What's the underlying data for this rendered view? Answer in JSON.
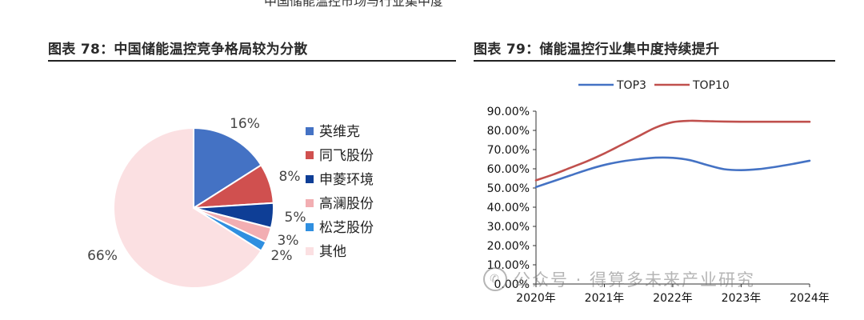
{
  "header_fragment": "中国储能温控市场与行业集中度",
  "left_panel": {
    "title": "图表 78：中国储能温控竞争格局较为分散"
  },
  "right_panel": {
    "title": "图表 79：储能温控行业集中度持续提升"
  },
  "watermark": {
    "icon": "wechat-icon",
    "text": "公众号 · 得算多未来产业研究"
  },
  "chart_data": [
    {
      "type": "pie",
      "title": "",
      "slices": [
        {
          "name": "英维克",
          "value": 16,
          "label": "16%",
          "color": "#4472C4"
        },
        {
          "name": "同飞股份",
          "value": 8,
          "label": "8%",
          "color": "#D0504F"
        },
        {
          "name": "申菱环境",
          "value": 5,
          "label": "5%",
          "color": "#0E3E96"
        },
        {
          "name": "高澜股份",
          "value": 3,
          "label": "3%",
          "color": "#F2AEB2"
        },
        {
          "name": "松芝股份",
          "value": 2,
          "label": "2%",
          "color": "#2F8FE0"
        },
        {
          "name": "其他",
          "value": 66,
          "label": "66%",
          "color": "#FBE0E2"
        }
      ],
      "legend_position": "right"
    },
    {
      "type": "line",
      "title": "",
      "xlabel": "",
      "ylabel": "",
      "categories": [
        "2020年",
        "2021年",
        "2022年",
        "2023年",
        "2024年"
      ],
      "x": [
        2020,
        2020.25,
        2020.5,
        2020.75,
        2021,
        2021.25,
        2021.5,
        2021.75,
        2022,
        2022.25,
        2022.5,
        2022.75,
        2023,
        2023.25,
        2023.5,
        2023.75,
        2024
      ],
      "series": [
        {
          "name": "TOP3",
          "color": "#4472C4",
          "values": [
            50.5,
            53.5,
            56.5,
            59.5,
            62,
            63.8,
            65,
            65.8,
            65.7,
            64.5,
            62,
            59.8,
            59.3,
            59.8,
            61,
            62.5,
            64.2
          ]
        },
        {
          "name": "TOP10",
          "color": "#C0504D",
          "values": [
            54,
            57,
            60.5,
            64,
            68,
            72.5,
            77,
            81.5,
            84.3,
            85,
            84.8,
            84.6,
            84.5,
            84.5,
            84.5,
            84.5,
            84.5
          ]
        }
      ],
      "y_tick_labels": [
        "0.00%",
        "10.00%",
        "20.00%",
        "30.00%",
        "40.00%",
        "50.00%",
        "60.00%",
        "70.00%",
        "80.00%",
        "90.00%"
      ],
      "ylim": [
        0,
        90
      ],
      "grid": false,
      "legend_position": "top"
    }
  ]
}
